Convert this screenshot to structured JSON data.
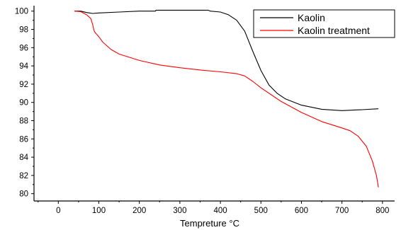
{
  "chart_data": {
    "type": "line",
    "title": "",
    "xlabel": "Tempreture",
    "xlabel_unit": "°C",
    "ylabel": "",
    "xlim": [
      -60,
      830
    ],
    "ylim": [
      79.2,
      100.6
    ],
    "x_ticks": [
      0,
      100,
      200,
      300,
      400,
      500,
      600,
      700,
      800
    ],
    "y_ticks": [
      80,
      82,
      84,
      86,
      88,
      90,
      92,
      94,
      96,
      98,
      100
    ],
    "grid": false,
    "legend_position": "top-right",
    "colors": {
      "Kaolin": "#000000",
      "Kaolin treatment": "#ff0000"
    },
    "series": [
      {
        "name": "Kaolin",
        "x": [
          40,
          55,
          70,
          85,
          100,
          150,
          200,
          240,
          241,
          300,
          370,
          375,
          400,
          420,
          440,
          460,
          480,
          500,
          520,
          540,
          560,
          600,
          650,
          700,
          750,
          790
        ],
        "y": [
          100.0,
          100.0,
          99.85,
          99.75,
          99.8,
          99.9,
          100.0,
          100.0,
          100.1,
          100.1,
          100.1,
          100.0,
          99.9,
          99.6,
          99.0,
          97.8,
          95.6,
          93.5,
          91.9,
          91.0,
          90.4,
          89.7,
          89.25,
          89.1,
          89.2,
          89.3
        ]
      },
      {
        "name": "Kaolin treatment",
        "x": [
          40,
          55,
          70,
          80,
          85,
          88,
          90,
          100,
          110,
          130,
          150,
          200,
          250,
          300,
          350,
          400,
          440,
          460,
          480,
          500,
          550,
          600,
          650,
          700,
          720,
          740,
          760,
          775,
          785,
          790
        ],
        "y": [
          100.0,
          99.95,
          99.6,
          99.2,
          98.5,
          97.9,
          97.7,
          97.2,
          96.6,
          95.8,
          95.3,
          94.6,
          94.1,
          93.8,
          93.55,
          93.35,
          93.15,
          92.9,
          92.3,
          91.6,
          90.1,
          88.9,
          87.9,
          87.2,
          86.9,
          86.3,
          85.2,
          83.6,
          82.0,
          80.7
        ]
      }
    ]
  }
}
